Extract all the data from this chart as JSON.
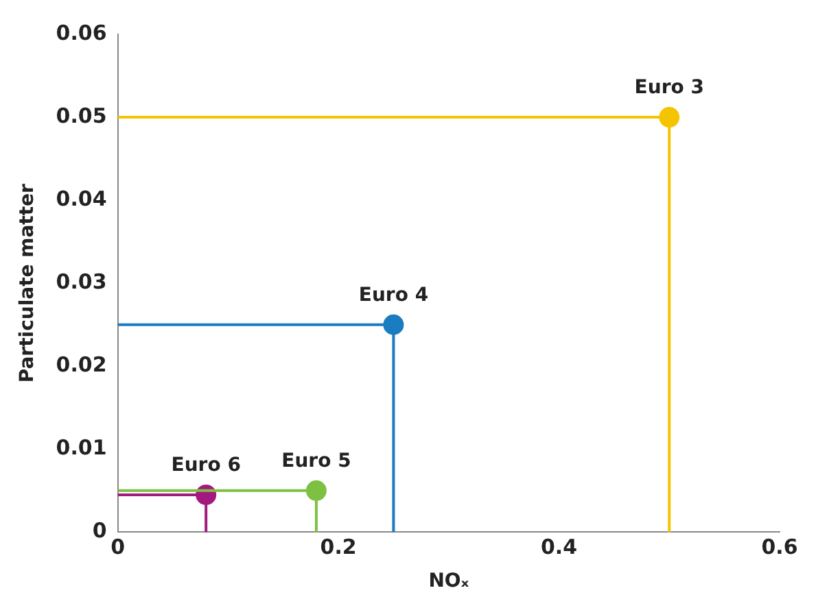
{
  "chart_data": {
    "type": "scatter",
    "xlabel": "NOₓ",
    "ylabel": "Particulate matter",
    "xlim": [
      0,
      0.6
    ],
    "xticks": [
      0,
      0.2,
      0.4,
      0.6
    ],
    "ylim": [
      0,
      0.06
    ],
    "yticks": [
      0,
      0.01,
      0.02,
      0.03,
      0.04,
      0.05,
      0.06
    ],
    "grid": false,
    "legend": false,
    "marker": "circle",
    "series": [
      {
        "type": "line",
        "marker": "none",
        "color": "#f5c400",
        "x": [
          0,
          0.5,
          0.5
        ],
        "values": [
          0.05,
          0.05,
          0
        ]
      },
      {
        "type": "line",
        "marker": "none",
        "color": "#1a7cc1",
        "x": [
          0,
          0.25,
          0.25
        ],
        "values": [
          0.025,
          0.025,
          0
        ]
      },
      {
        "type": "line",
        "marker": "none",
        "color": "#7dc142",
        "x": [
          0,
          0.18,
          0.18
        ],
        "values": [
          0.005,
          0.005,
          0
        ]
      },
      {
        "type": "line",
        "marker": "none",
        "color": "#a4197f",
        "x": [
          0,
          0.08,
          0.08
        ],
        "values": [
          0.0045,
          0.0045,
          0
        ]
      },
      {
        "name": "Euro 3",
        "color": "#f5c400",
        "x": [
          0.5
        ],
        "values": [
          0.05
        ]
      },
      {
        "name": "Euro 4",
        "color": "#1a7cc1",
        "x": [
          0.25
        ],
        "values": [
          0.025
        ]
      },
      {
        "name": "Euro 5",
        "color": "#7dc142",
        "x": [
          0.18
        ],
        "values": [
          0.005
        ]
      },
      {
        "name": "Euro 6",
        "color": "#a4197f",
        "x": [
          0.08
        ],
        "values": [
          0.0045
        ]
      }
    ]
  }
}
